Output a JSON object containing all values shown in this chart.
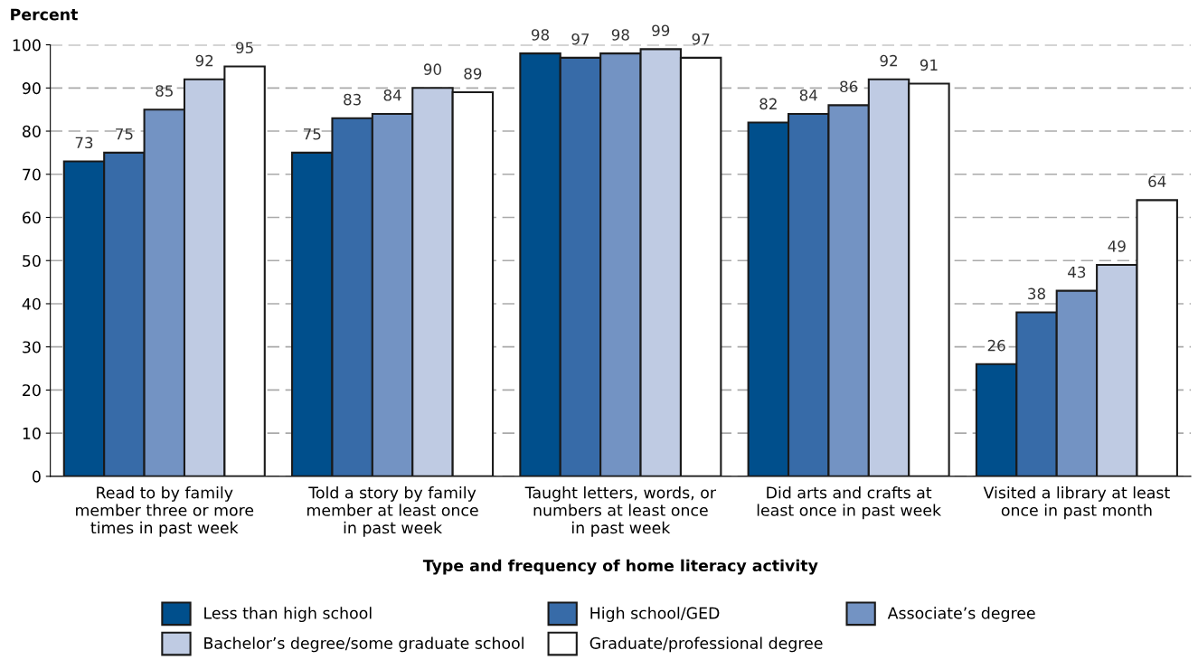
{
  "chart_data": {
    "type": "bar",
    "ylabel": "Percent",
    "xlabel": "Type and frequency of home literacy activity",
    "categories": [
      "Read to by family\nmember three or more\ntimes in past week",
      "Told a story by family\nmember at least once\nin past week",
      "Taught letters, words, or\nnumbers at least once\nin past week",
      "Did arts and crafts at\nleast once in past week",
      "Visited a library at least\nonce in past month"
    ],
    "series": [
      {
        "name": "Less than high school",
        "color": "#004f8c",
        "values": [
          73,
          75,
          98,
          82,
          26
        ]
      },
      {
        "name": "High school/GED",
        "color": "#376ba8",
        "values": [
          75,
          83,
          97,
          84,
          38
        ]
      },
      {
        "name": "Associate’s degree",
        "color": "#7393c3",
        "values": [
          85,
          84,
          98,
          86,
          43
        ]
      },
      {
        "name": "Bachelor’s degree/some graduate school",
        "color": "#bfcbe3",
        "values": [
          92,
          90,
          99,
          92,
          49
        ]
      },
      {
        "name": "Graduate/professional degree",
        "color": "#ffffff",
        "values": [
          95,
          89,
          97,
          91,
          64
        ]
      }
    ],
    "ylim": [
      0,
      100
    ],
    "yticks": [
      0,
      10,
      20,
      30,
      40,
      50,
      60,
      70,
      80,
      90,
      100
    ],
    "grid": "y",
    "legend": "bottom",
    "data_labels": true
  }
}
